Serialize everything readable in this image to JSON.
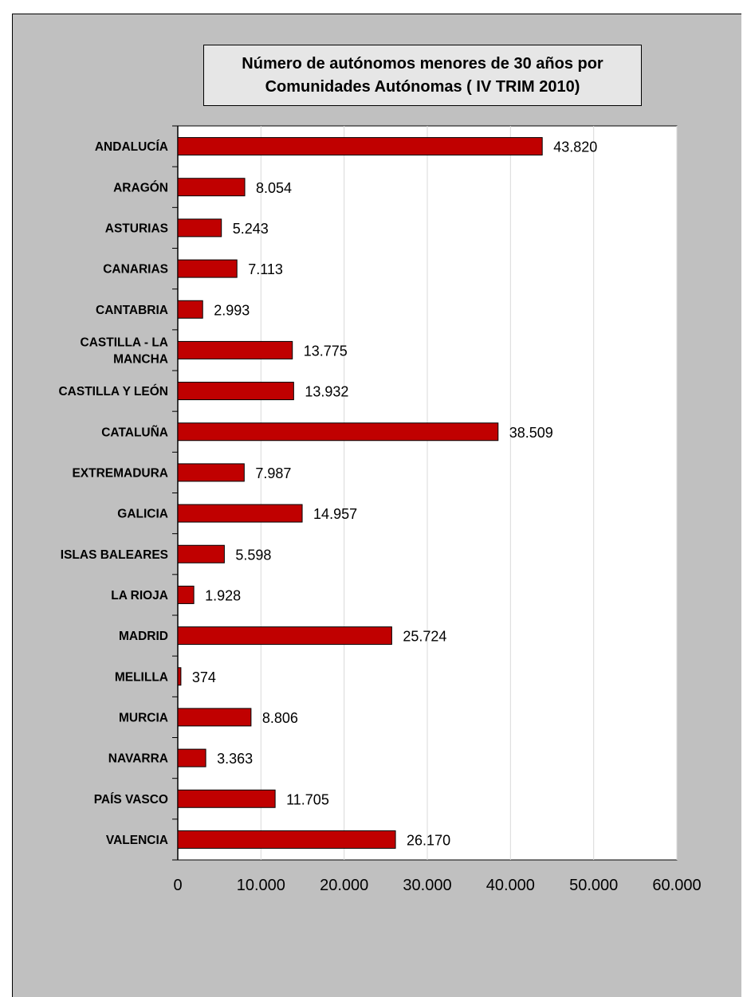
{
  "chart_data": {
    "type": "bar",
    "orientation": "horizontal",
    "title": "Número de  autónomos menores de 30 años por\nComunidades Autónomas   ( IV TRIM 2010)",
    "categories": [
      "ANDALUCÍA",
      "ARAGÓN",
      "ASTURIAS",
      "CANARIAS",
      "CANTABRIA",
      "CASTILLA - LA MANCHA",
      "CASTILLA Y LEÓN",
      "CATALUÑA",
      "EXTREMADURA",
      "GALICIA",
      "ISLAS BALEARES",
      "LA RIOJA",
      "MADRID",
      "MELILLA",
      "MURCIA",
      "NAVARRA",
      "PAÍS VASCO",
      "VALENCIA"
    ],
    "category_lines": [
      [
        "ANDALUCÍA"
      ],
      [
        "ARAGÓN"
      ],
      [
        "ASTURIAS"
      ],
      [
        "CANARIAS"
      ],
      [
        "CANTABRIA"
      ],
      [
        "CASTILLA - LA",
        "MANCHA"
      ],
      [
        "CASTILLA Y LEÓN"
      ],
      [
        "CATALUÑA"
      ],
      [
        "EXTREMADURA"
      ],
      [
        "GALICIA"
      ],
      [
        "ISLAS BALEARES"
      ],
      [
        "LA RIOJA"
      ],
      [
        "MADRID"
      ],
      [
        "MELILLA"
      ],
      [
        "MURCIA"
      ],
      [
        "NAVARRA"
      ],
      [
        "PAÍS VASCO"
      ],
      [
        "VALENCIA"
      ]
    ],
    "values": [
      43820,
      8054,
      5243,
      7113,
      2993,
      13775,
      13932,
      38509,
      7987,
      14957,
      5598,
      1928,
      25724,
      374,
      8806,
      3363,
      11705,
      26170
    ],
    "value_labels": [
      "43.820",
      "8.054",
      "5.243",
      "7.113",
      "2.993",
      "13.775",
      "13.932",
      "38.509",
      "7.987",
      "14.957",
      "5.598",
      "1.928",
      "25.724",
      "374",
      "8.806",
      "3.363",
      "11.705",
      "26.170"
    ],
    "xlim": [
      0,
      60000
    ],
    "x_ticks": [
      0,
      10000,
      20000,
      30000,
      40000,
      50000,
      60000
    ],
    "x_tick_labels": [
      "0",
      "10.000",
      "20.000",
      "30.000",
      "40.000",
      "50.000",
      "60.000"
    ],
    "xlabel": "",
    "ylabel": "",
    "grid": "vertical",
    "legend": "none",
    "bar_color": "#c00000",
    "plot_background": "#ffffff",
    "chart_background": "#c0c0c0"
  }
}
